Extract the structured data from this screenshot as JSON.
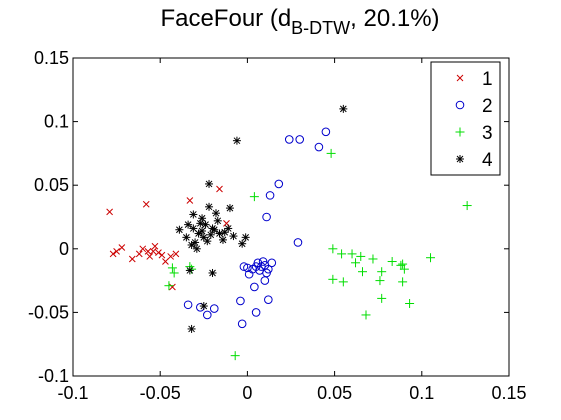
{
  "chart_data": {
    "type": "scatter",
    "title": {
      "prefix": "FaceFour (d",
      "subscript": "B-DTW",
      "suffix": ", 20.1%)"
    },
    "xlabel": "",
    "ylabel": "",
    "xlim": [
      -0.1,
      0.15
    ],
    "ylim": [
      -0.1,
      0.15
    ],
    "xticks": [
      -0.1,
      -0.05,
      0,
      0.05,
      0.1,
      0.15
    ],
    "xtick_labels": [
      "-0.1",
      "-0.05",
      "0",
      "0.05",
      "0.1",
      "0.15"
    ],
    "yticks": [
      -0.1,
      -0.05,
      0,
      0.05,
      0.1,
      0.15
    ],
    "ytick_labels": [
      "-0.1",
      "-0.05",
      "0",
      "0.05",
      "0.1",
      "0.15"
    ],
    "grid": false,
    "legend_position": "top-right",
    "series": [
      {
        "name": "1",
        "marker": "x",
        "color": "#cc0000",
        "points": [
          [
            -0.079,
            0.029
          ],
          [
            -0.077,
            -0.004
          ],
          [
            -0.075,
            -0.002
          ],
          [
            -0.072,
            0.001
          ],
          [
            -0.066,
            -0.008
          ],
          [
            -0.062,
            -0.004
          ],
          [
            -0.06,
            0.0
          ],
          [
            -0.058,
            0.035
          ],
          [
            -0.057,
            -0.002
          ],
          [
            -0.056,
            -0.006
          ],
          [
            -0.054,
            -0.002
          ],
          [
            -0.053,
            0.002
          ],
          [
            -0.051,
            -0.003
          ],
          [
            -0.049,
            -0.005
          ],
          [
            -0.047,
            -0.01
          ],
          [
            -0.044,
            -0.006
          ],
          [
            -0.043,
            -0.03
          ],
          [
            -0.041,
            -0.004
          ],
          [
            -0.033,
            0.038
          ],
          [
            -0.016,
            0.047
          ],
          [
            -0.012,
            0.02
          ]
        ]
      },
      {
        "name": "2",
        "marker": "o",
        "color": "#0000cc",
        "points": [
          [
            -0.034,
            -0.044
          ],
          [
            -0.027,
            -0.046
          ],
          [
            -0.023,
            -0.052
          ],
          [
            -0.019,
            -0.047
          ],
          [
            -0.004,
            -0.041
          ],
          [
            -0.003,
            -0.059
          ],
          [
            -0.002,
            -0.014
          ],
          [
            0.0,
            -0.015
          ],
          [
            0.001,
            -0.02
          ],
          [
            0.003,
            -0.016
          ],
          [
            0.004,
            -0.03
          ],
          [
            0.005,
            -0.05
          ],
          [
            0.005,
            -0.014
          ],
          [
            0.006,
            -0.011
          ],
          [
            0.007,
            -0.017
          ],
          [
            0.008,
            -0.014
          ],
          [
            0.009,
            -0.01
          ],
          [
            0.01,
            -0.013
          ],
          [
            0.01,
            -0.025
          ],
          [
            0.011,
            -0.019
          ],
          [
            0.011,
            0.025
          ],
          [
            0.012,
            -0.016
          ],
          [
            0.012,
            -0.04
          ],
          [
            0.013,
            0.042
          ],
          [
            0.014,
            -0.011
          ],
          [
            0.018,
            0.051
          ],
          [
            0.024,
            0.086
          ],
          [
            0.029,
            0.005
          ],
          [
            0.03,
            0.086
          ],
          [
            0.041,
            0.08
          ],
          [
            0.045,
            0.092
          ]
        ]
      },
      {
        "name": "3",
        "marker": "+",
        "color": "#00dd00",
        "points": [
          [
            -0.045,
            -0.029
          ],
          [
            -0.043,
            -0.015
          ],
          [
            -0.042,
            -0.019
          ],
          [
            -0.033,
            -0.014
          ],
          [
            -0.032,
            -0.016
          ],
          [
            -0.007,
            -0.084
          ],
          [
            0.004,
            0.041
          ],
          [
            0.048,
            0.075
          ],
          [
            0.049,
            0.0
          ],
          [
            0.049,
            -0.024
          ],
          [
            0.054,
            -0.004
          ],
          [
            0.055,
            -0.026
          ],
          [
            0.06,
            -0.004
          ],
          [
            0.062,
            -0.011
          ],
          [
            0.065,
            -0.006
          ],
          [
            0.066,
            -0.018
          ],
          [
            0.068,
            -0.052
          ],
          [
            0.072,
            -0.008
          ],
          [
            0.076,
            -0.025
          ],
          [
            0.077,
            -0.018
          ],
          [
            0.077,
            -0.039
          ],
          [
            0.083,
            -0.01
          ],
          [
            0.088,
            -0.013
          ],
          [
            0.089,
            -0.012
          ],
          [
            0.089,
            -0.026
          ],
          [
            0.09,
            -0.016
          ],
          [
            0.093,
            -0.043
          ],
          [
            0.105,
            -0.007
          ],
          [
            0.126,
            0.034
          ]
        ]
      },
      {
        "name": "4",
        "marker": "*",
        "color": "#000000",
        "points": [
          [
            -0.039,
            0.015
          ],
          [
            -0.035,
            0.009
          ],
          [
            -0.034,
            0.019
          ],
          [
            -0.033,
            -0.017
          ],
          [
            -0.032,
            -0.063
          ],
          [
            -0.032,
            0.003
          ],
          [
            -0.031,
            0.016
          ],
          [
            -0.031,
            0.027
          ],
          [
            -0.03,
            0.005
          ],
          [
            -0.029,
            0.0
          ],
          [
            -0.028,
            0.012
          ],
          [
            -0.027,
            0.02
          ],
          [
            -0.026,
            0.014
          ],
          [
            -0.026,
            0.024
          ],
          [
            -0.025,
            0.009
          ],
          [
            -0.025,
            -0.045
          ],
          [
            -0.024,
            0.019
          ],
          [
            -0.023,
            0.006
          ],
          [
            -0.022,
            0.033
          ],
          [
            -0.022,
            0.051
          ],
          [
            -0.021,
            0.011
          ],
          [
            -0.02,
            0.016
          ],
          [
            -0.02,
            -0.019
          ],
          [
            -0.019,
            0.015
          ],
          [
            -0.018,
            0.028
          ],
          [
            -0.017,
            0.022
          ],
          [
            -0.016,
            0.012
          ],
          [
            -0.014,
            0.007
          ],
          [
            -0.013,
            0.013
          ],
          [
            -0.011,
            0.016
          ],
          [
            -0.01,
            0.032
          ],
          [
            -0.008,
            0.01
          ],
          [
            -0.006,
            0.085
          ],
          [
            -0.003,
            0.004
          ],
          [
            -0.001,
            0.009
          ],
          [
            0.055,
            0.11
          ]
        ]
      }
    ]
  }
}
